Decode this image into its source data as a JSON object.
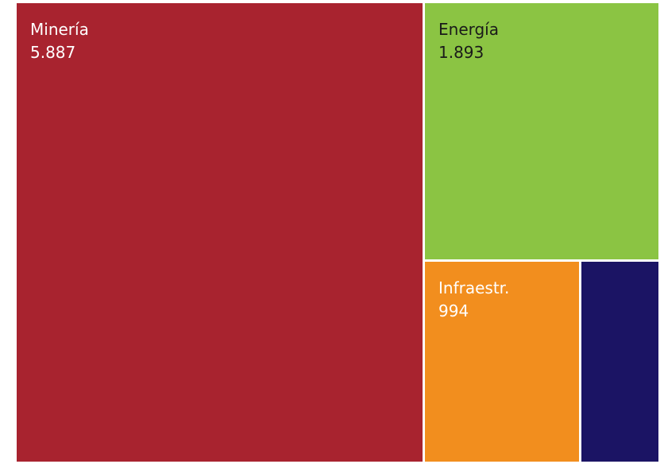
{
  "chart_data": {
    "type": "treemap",
    "items": [
      {
        "name": "Minería",
        "value_label": "5.887",
        "value": 5887,
        "color": "#a8232f",
        "text_color": "#ffffff"
      },
      {
        "name": "Energía",
        "value_label": "1.893",
        "value": 1893,
        "color": "#8bc443",
        "text_color": "#1a1a1a"
      },
      {
        "name": "Infraestr.",
        "value_label": "994",
        "value": 994,
        "color": "#f28e1e",
        "text_color": "#ffffff"
      },
      {
        "name": "",
        "value_label": "",
        "value": null,
        "color": "#1b1464",
        "text_color": "#ffffff"
      }
    ]
  }
}
